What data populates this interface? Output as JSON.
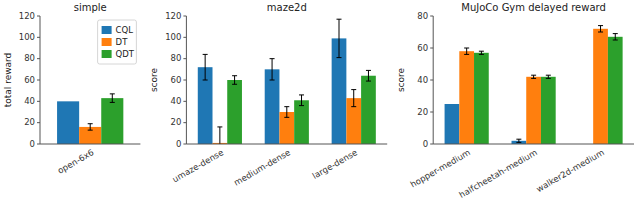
{
  "chart_data": [
    {
      "type": "bar",
      "title": "simple",
      "y_label": "total reward",
      "categories": [
        "open-6x6"
      ],
      "series": [
        {
          "name": "CQL",
          "color": "#1f77b4",
          "values": [
            40
          ],
          "errors": [
            null
          ]
        },
        {
          "name": "DT",
          "color": "#ff7f0e",
          "values": [
            16
          ],
          "errors": [
            3
          ]
        },
        {
          "name": "QDT",
          "color": "#2ca02c",
          "values": [
            43
          ],
          "errors": [
            4
          ]
        }
      ],
      "ylim": [
        0,
        120
      ],
      "yticks": [
        0,
        20,
        40,
        60,
        80,
        100,
        120
      ],
      "legend": "upper right"
    },
    {
      "type": "bar",
      "title": "maze2d",
      "y_label": "score",
      "categories": [
        "umaze-dense",
        "medium-dense",
        "large-dense"
      ],
      "series": [
        {
          "color": "#1f77b4",
          "values": [
            72,
            70,
            99
          ],
          "errors": [
            12,
            10,
            18
          ]
        },
        {
          "color": "#ff7f0e",
          "values": [
            1,
            30,
            43
          ],
          "errors": [
            15,
            5,
            8
          ]
        },
        {
          "color": "#2ca02c",
          "values": [
            60,
            41,
            64
          ],
          "errors": [
            4,
            5,
            5
          ]
        }
      ],
      "ylim": [
        0,
        120
      ],
      "yticks": [
        0,
        20,
        40,
        60,
        80,
        100,
        120
      ]
    },
    {
      "type": "bar",
      "title": "MuJoCo Gym delayed reward",
      "y_label": "score",
      "categories": [
        "hopper-medium",
        "halfcheetah-medium",
        "walker2d-medium"
      ],
      "series": [
        {
          "color": "#1f77b4",
          "values": [
            25,
            2,
            0
          ],
          "errors": [
            null,
            1,
            null
          ]
        },
        {
          "color": "#ff7f0e",
          "values": [
            58,
            42,
            72
          ],
          "errors": [
            2,
            1,
            2
          ]
        },
        {
          "color": "#2ca02c",
          "values": [
            57,
            42,
            67
          ],
          "errors": [
            1,
            1,
            2
          ]
        }
      ],
      "ylim": [
        0,
        80
      ],
      "yticks": [
        0,
        20,
        40,
        60,
        80
      ]
    }
  ]
}
